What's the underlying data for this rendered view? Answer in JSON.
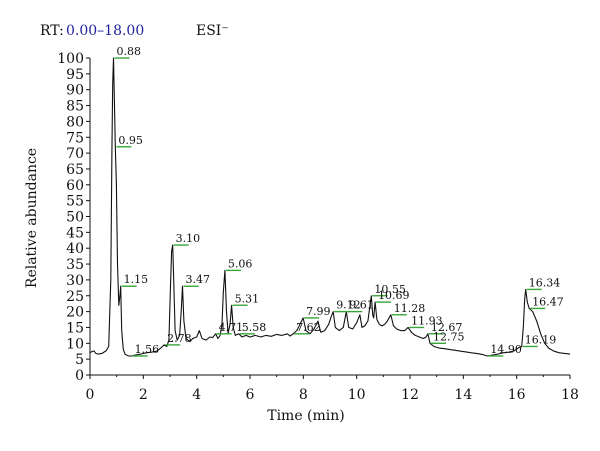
{
  "header": {
    "rt_label": "RT:",
    "rt_range": "0.00–18.00",
    "ion_mode": "ESI⁻"
  },
  "chart_data": {
    "type": "line",
    "xlabel": "Time (min)",
    "ylabel": "Relative abundance",
    "xlim": [
      0,
      18
    ],
    "ylim": [
      0,
      100
    ],
    "xticks": [
      0,
      2,
      4,
      6,
      8,
      10,
      12,
      14,
      16,
      18
    ],
    "yticks": [
      0,
      5,
      10,
      15,
      20,
      25,
      30,
      35,
      40,
      45,
      50,
      55,
      60,
      65,
      70,
      75,
      80,
      85,
      90,
      95,
      100
    ],
    "grid": false,
    "colors": {
      "trace": "#111111",
      "marker": "#3aa63a"
    },
    "peaks": [
      {
        "label": "0.88",
        "x": 0.88,
        "y": 100
      },
      {
        "label": "0.95",
        "x": 0.95,
        "y": 72
      },
      {
        "label": "1.15",
        "x": 1.15,
        "y": 28
      },
      {
        "label": "1.56",
        "x": 1.56,
        "y": 6
      },
      {
        "label": "2.78",
        "x": 2.78,
        "y": 9.5
      },
      {
        "label": "3.10",
        "x": 3.1,
        "y": 41
      },
      {
        "label": "3.47",
        "x": 3.47,
        "y": 28
      },
      {
        "label": "4.71",
        "x": 4.71,
        "y": 13
      },
      {
        "label": "5.06",
        "x": 5.06,
        "y": 33
      },
      {
        "label": "5.31",
        "x": 5.31,
        "y": 22
      },
      {
        "label": "5.58",
        "x": 5.58,
        "y": 13
      },
      {
        "label": "7.62",
        "x": 7.62,
        "y": 13
      },
      {
        "label": "7.99",
        "x": 7.99,
        "y": 18
      },
      {
        "label": "9.12",
        "x": 9.12,
        "y": 20
      },
      {
        "label": "9.61",
        "x": 9.61,
        "y": 20
      },
      {
        "label": "10.55",
        "x": 10.55,
        "y": 25
      },
      {
        "label": "10.69",
        "x": 10.69,
        "y": 23
      },
      {
        "label": "11.28",
        "x": 11.28,
        "y": 19
      },
      {
        "label": "11.93",
        "x": 11.93,
        "y": 15
      },
      {
        "label": "12.67",
        "x": 12.67,
        "y": 13
      },
      {
        "label": "12.75",
        "x": 12.75,
        "y": 10
      },
      {
        "label": "14.90",
        "x": 14.9,
        "y": 6
      },
      {
        "label": "16.19",
        "x": 16.19,
        "y": 9
      },
      {
        "label": "16.34",
        "x": 16.34,
        "y": 27
      },
      {
        "label": "16.47",
        "x": 16.47,
        "y": 21
      }
    ],
    "trace": [
      [
        0.0,
        7
      ],
      [
        0.05,
        7.3
      ],
      [
        0.15,
        7.6
      ],
      [
        0.22,
        6.8
      ],
      [
        0.3,
        6.6
      ],
      [
        0.45,
        6.8
      ],
      [
        0.6,
        7.6
      ],
      [
        0.7,
        9
      ],
      [
        0.78,
        30
      ],
      [
        0.82,
        70
      ],
      [
        0.85,
        92
      ],
      [
        0.88,
        100
      ],
      [
        0.91,
        88
      ],
      [
        0.95,
        72
      ],
      [
        0.99,
        60
      ],
      [
        1.03,
        35
      ],
      [
        1.08,
        22
      ],
      [
        1.12,
        25
      ],
      [
        1.15,
        28
      ],
      [
        1.19,
        14
      ],
      [
        1.25,
        8
      ],
      [
        1.32,
        6.5
      ],
      [
        1.45,
        6
      ],
      [
        1.56,
        6
      ],
      [
        1.7,
        6.3
      ],
      [
        1.9,
        6.6
      ],
      [
        2.1,
        7
      ],
      [
        2.3,
        7.2
      ],
      [
        2.5,
        7.5
      ],
      [
        2.65,
        8.5
      ],
      [
        2.78,
        9.5
      ],
      [
        2.88,
        9
      ],
      [
        2.96,
        11
      ],
      [
        3.02,
        28
      ],
      [
        3.06,
        39
      ],
      [
        3.1,
        41
      ],
      [
        3.14,
        30
      ],
      [
        3.19,
        14
      ],
      [
        3.27,
        11
      ],
      [
        3.36,
        12.5
      ],
      [
        3.42,
        20
      ],
      [
        3.47,
        28
      ],
      [
        3.52,
        17
      ],
      [
        3.6,
        11.5
      ],
      [
        3.75,
        10.5
      ],
      [
        3.85,
        11.5
      ],
      [
        4.0,
        12
      ],
      [
        4.1,
        14
      ],
      [
        4.2,
        11.5
      ],
      [
        4.35,
        11
      ],
      [
        4.5,
        12
      ],
      [
        4.6,
        11.8
      ],
      [
        4.71,
        13
      ],
      [
        4.8,
        11.5
      ],
      [
        4.88,
        12.5
      ],
      [
        4.95,
        16
      ],
      [
        5.0,
        26
      ],
      [
        5.06,
        33
      ],
      [
        5.12,
        20
      ],
      [
        5.18,
        13
      ],
      [
        5.25,
        16
      ],
      [
        5.31,
        22
      ],
      [
        5.37,
        15
      ],
      [
        5.45,
        12.5
      ],
      [
        5.58,
        13
      ],
      [
        5.7,
        12
      ],
      [
        5.85,
        12.5
      ],
      [
        6.0,
        12
      ],
      [
        6.2,
        12.5
      ],
      [
        6.4,
        12
      ],
      [
        6.6,
        12.5
      ],
      [
        6.8,
        12.2
      ],
      [
        7.0,
        12.8
      ],
      [
        7.2,
        12.5
      ],
      [
        7.4,
        13
      ],
      [
        7.5,
        12.3
      ],
      [
        7.62,
        13
      ],
      [
        7.75,
        14
      ],
      [
        7.85,
        15.5
      ],
      [
        7.99,
        18
      ],
      [
        8.1,
        14
      ],
      [
        8.25,
        13
      ],
      [
        8.4,
        14.5
      ],
      [
        8.55,
        17
      ],
      [
        8.65,
        13.5
      ],
      [
        8.8,
        14
      ],
      [
        8.95,
        16
      ],
      [
        9.05,
        18.5
      ],
      [
        9.12,
        20
      ],
      [
        9.2,
        15
      ],
      [
        9.35,
        14
      ],
      [
        9.5,
        15
      ],
      [
        9.61,
        20
      ],
      [
        9.7,
        15
      ],
      [
        9.85,
        14.5
      ],
      [
        10.0,
        16.5
      ],
      [
        10.12,
        19
      ],
      [
        10.2,
        15
      ],
      [
        10.3,
        15.5
      ],
      [
        10.42,
        17
      ],
      [
        10.5,
        22
      ],
      [
        10.55,
        25
      ],
      [
        10.6,
        19
      ],
      [
        10.64,
        18
      ],
      [
        10.69,
        23
      ],
      [
        10.76,
        17.5
      ],
      [
        10.85,
        16
      ],
      [
        10.95,
        15.5
      ],
      [
        11.05,
        16
      ],
      [
        11.15,
        17
      ],
      [
        11.28,
        19
      ],
      [
        11.38,
        15.5
      ],
      [
        11.5,
        14.5
      ],
      [
        11.65,
        14
      ],
      [
        11.8,
        14
      ],
      [
        11.93,
        15
      ],
      [
        12.05,
        13.5
      ],
      [
        12.2,
        12.5
      ],
      [
        12.35,
        12
      ],
      [
        12.5,
        11.5
      ],
      [
        12.6,
        12
      ],
      [
        12.67,
        13
      ],
      [
        12.75,
        10
      ],
      [
        12.9,
        9
      ],
      [
        13.1,
        8.5
      ],
      [
        13.3,
        8.3
      ],
      [
        13.5,
        8
      ],
      [
        13.7,
        7.8
      ],
      [
        13.9,
        7.5
      ],
      [
        14.1,
        7.3
      ],
      [
        14.3,
        7
      ],
      [
        14.5,
        6.8
      ],
      [
        14.7,
        6.5
      ],
      [
        14.9,
        6
      ],
      [
        15.1,
        6.3
      ],
      [
        15.3,
        6.6
      ],
      [
        15.5,
        7
      ],
      [
        15.7,
        7.2
      ],
      [
        15.9,
        7.6
      ],
      [
        16.05,
        8.5
      ],
      [
        16.19,
        9
      ],
      [
        16.25,
        15
      ],
      [
        16.3,
        24
      ],
      [
        16.34,
        27
      ],
      [
        16.4,
        23
      ],
      [
        16.47,
        21
      ],
      [
        16.6,
        20
      ],
      [
        16.75,
        17
      ],
      [
        16.9,
        13
      ],
      [
        17.05,
        10
      ],
      [
        17.2,
        8.5
      ],
      [
        17.4,
        7.5
      ],
      [
        17.6,
        7
      ],
      [
        17.8,
        6.8
      ],
      [
        18.0,
        6.6
      ]
    ]
  }
}
